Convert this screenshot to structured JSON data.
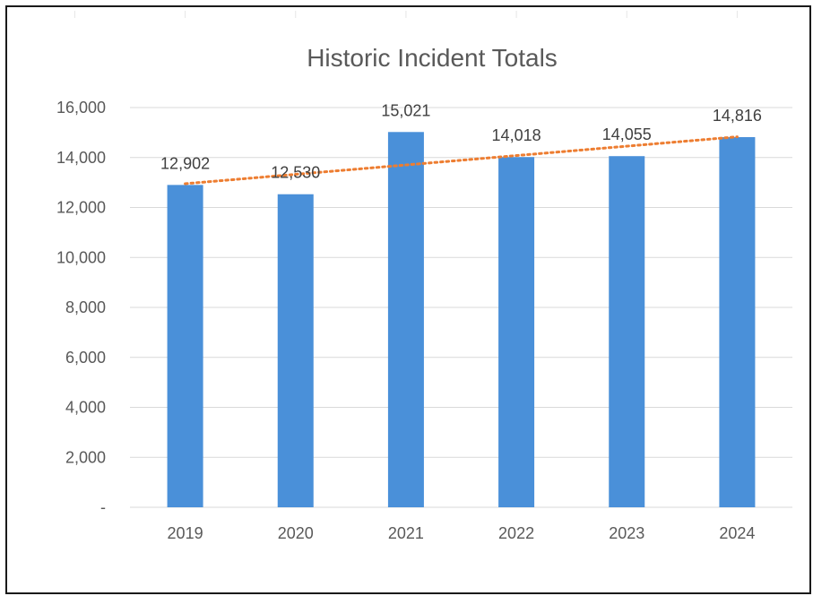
{
  "chart_data": {
    "type": "bar",
    "title": "Historic Incident Totals",
    "categories": [
      "2019",
      "2020",
      "2021",
      "2022",
      "2023",
      "2024"
    ],
    "values": [
      12902,
      12530,
      15021,
      14018,
      14055,
      14816
    ],
    "data_labels": [
      "12,902",
      "12,530",
      "15,021",
      "14,018",
      "14,055",
      "14,816"
    ],
    "xlabel": "",
    "ylabel": "",
    "ylim": [
      0,
      16000
    ],
    "y_ticks": [
      0,
      2000,
      4000,
      6000,
      8000,
      10000,
      12000,
      14000,
      16000
    ],
    "y_tick_labels": [
      "-",
      "2,000",
      "4,000",
      "6,000",
      "8,000",
      "10,000",
      "12,000",
      "14,000",
      "16,000"
    ],
    "grid": true,
    "legend": "none",
    "trendline": {
      "type": "linear",
      "style": "dotted"
    },
    "colors": {
      "bar": "#4a90d9",
      "trendline": "#ed7d31",
      "grid": "#d9d9d9",
      "text": "#595959"
    }
  }
}
